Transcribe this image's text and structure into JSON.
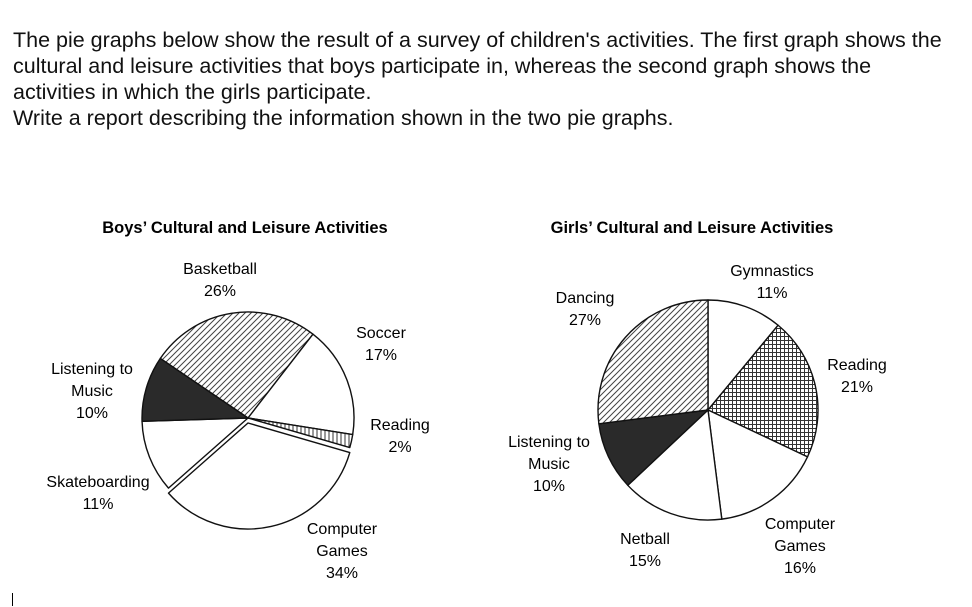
{
  "prompt": {
    "line1": "The pie graphs below show the result of a survey of children's activities. The first graph shows the cultural and leisure activities that boys participate in, whereas the second graph shows the activities in which the girls participate.",
    "line2": "Write a report describing the information shown in the two pie graphs."
  },
  "chart_data": [
    {
      "type": "pie",
      "title": "Boys’ Cultural and Leisure Activities",
      "unit": "%",
      "slices": [
        {
          "name": "Basketball",
          "label_lines": [
            "Basketball",
            "26%"
          ],
          "value": 26,
          "fill": "hatch-diagonal"
        },
        {
          "name": "Soccer",
          "label_lines": [
            "Soccer",
            "17%"
          ],
          "value": 17,
          "fill": "white"
        },
        {
          "name": "Reading",
          "label_lines": [
            "Reading",
            "2%"
          ],
          "value": 2,
          "fill": "hatch-vertical"
        },
        {
          "name": "Computer Games",
          "label_lines": [
            "Computer",
            "Games",
            "34%"
          ],
          "value": 34,
          "fill": "white"
        },
        {
          "name": "Skateboarding",
          "label_lines": [
            "Skateboarding",
            "11%"
          ],
          "value": 11,
          "fill": "white"
        },
        {
          "name": "Listening to Music",
          "label_lines": [
            "Listening to",
            "Music",
            "10%"
          ],
          "value": 10,
          "fill": "dark"
        }
      ]
    },
    {
      "type": "pie",
      "title": "Girls’ Cultural and Leisure Activities",
      "unit": "%",
      "slices": [
        {
          "name": "Gymnastics",
          "label_lines": [
            "Gymnastics",
            "11%"
          ],
          "value": 11,
          "fill": "white"
        },
        {
          "name": "Reading",
          "label_lines": [
            "Reading",
            "21%"
          ],
          "value": 21,
          "fill": "hatch-grid"
        },
        {
          "name": "Computer Games",
          "label_lines": [
            "Computer",
            "Games",
            "16%"
          ],
          "value": 16,
          "fill": "white"
        },
        {
          "name": "Netball",
          "label_lines": [
            "Netball",
            "15%"
          ],
          "value": 15,
          "fill": "white"
        },
        {
          "name": "Listening to Music",
          "label_lines": [
            "Listening to",
            "Music",
            "10%"
          ],
          "value": 10,
          "fill": "dark"
        },
        {
          "name": "Dancing",
          "label_lines": [
            "Dancing",
            "27%"
          ],
          "value": 27,
          "fill": "hatch-diagonal"
        }
      ]
    }
  ]
}
